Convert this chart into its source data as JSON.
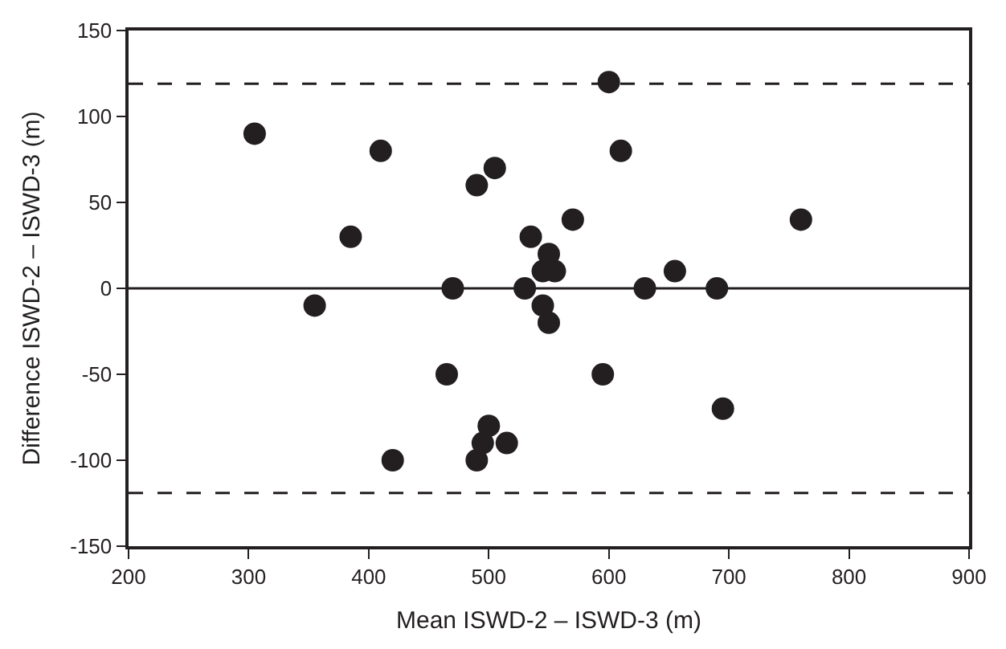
{
  "chart_data": {
    "type": "scatter",
    "xlabel": "Mean ISWD-2 – ISWD-3 (m)",
    "ylabel": "Difference ISWD-2 – ISWD-3 (m)",
    "x": [
      305,
      355,
      385,
      410,
      420,
      465,
      470,
      490,
      490,
      495,
      500,
      505,
      515,
      530,
      535,
      545,
      545,
      550,
      550,
      555,
      570,
      595,
      600,
      610,
      630,
      655,
      690,
      695,
      760
    ],
    "series": [
      {
        "color": "#231f20",
        "values": [
          90,
          -10,
          30,
          80,
          -100,
          -50,
          0,
          60,
          -100,
          -90,
          -80,
          70,
          -90,
          0,
          30,
          10,
          -10,
          -20,
          20,
          10,
          40,
          -50,
          120,
          80,
          0,
          10,
          0,
          -70,
          40
        ]
      }
    ],
    "xlim": [
      200,
      900
    ],
    "xticks": [
      200,
      300,
      400,
      500,
      600,
      700,
      800,
      900
    ],
    "ylim": [
      -150,
      150
    ],
    "yticks": [
      -150,
      -100,
      -50,
      0,
      50,
      100,
      150
    ],
    "ref_lines": [
      {
        "axis": "y",
        "value": 119,
        "line_style": "dashed",
        "color": "#231f20"
      },
      {
        "axis": "y",
        "value": 0,
        "line_style": "solid",
        "color": "#231f20"
      },
      {
        "axis": "y",
        "value": -119,
        "line_style": "dashed",
        "color": "#231f20"
      }
    ],
    "marker": "circle",
    "grid": false
  }
}
